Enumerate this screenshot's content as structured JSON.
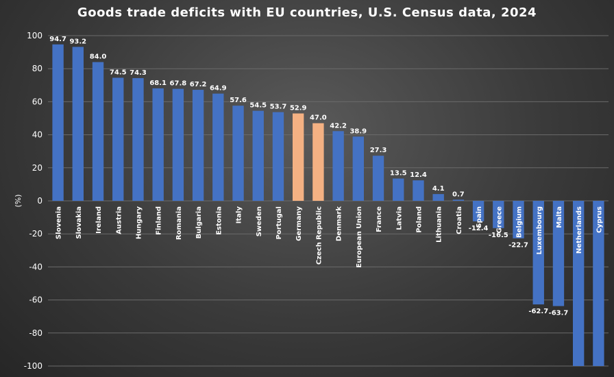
{
  "chart_data": {
    "type": "bar",
    "title": "Goods trade deficits with EU countries, U.S. Census data, 2024",
    "ylabel": "(%)",
    "xlabel": "",
    "ylim": [
      -100,
      100
    ],
    "yticks": [
      100,
      80,
      60,
      40,
      20,
      0,
      -20,
      -40,
      -60,
      -80,
      -100
    ],
    "grid": true,
    "legend": "none",
    "colors": {
      "default": "#4472c4",
      "highlight": "#f4b183"
    },
    "categories": [
      "Slovenia",
      "Slovakia",
      "Ireland",
      "Austria",
      "Hungary",
      "Finland",
      "Romania",
      "Bulgaria",
      "Estonia",
      "Italy",
      "Sweden",
      "Portugal",
      "Germany",
      "Czech Republic",
      "Denmark",
      "European Union",
      "France",
      "Latvia",
      "Poland",
      "Lithuania",
      "Croatia",
      "Spain",
      "Greece",
      "Belgium",
      "Luxembourg",
      "Malta",
      "Netherlands",
      "Cyprus"
    ],
    "values": [
      94.7,
      93.2,
      84.0,
      74.5,
      74.3,
      68.1,
      67.8,
      67.2,
      64.9,
      57.6,
      54.5,
      53.7,
      52.9,
      47.0,
      42.2,
      38.9,
      27.3,
      13.5,
      12.4,
      4.1,
      0.7,
      -12.4,
      -16.5,
      -22.7,
      -62.7,
      -63.7,
      -100,
      -100
    ],
    "value_labels": [
      "94.7",
      "93.2",
      "84.0",
      "74.5",
      "74.3",
      "68.1",
      "67.8",
      "67.2",
      "64.9",
      "57.6",
      "54.5",
      "53.7",
      "52.9",
      "47.0",
      "42.2",
      "38.9",
      "27.3",
      "13.5",
      "12.4",
      "4.1",
      "0.7",
      "-12.4",
      "-16.5",
      "-22.7",
      "-62.7",
      "-63.7",
      "",
      ""
    ],
    "highlighted": [
      "Germany",
      "Czech Republic"
    ]
  }
}
